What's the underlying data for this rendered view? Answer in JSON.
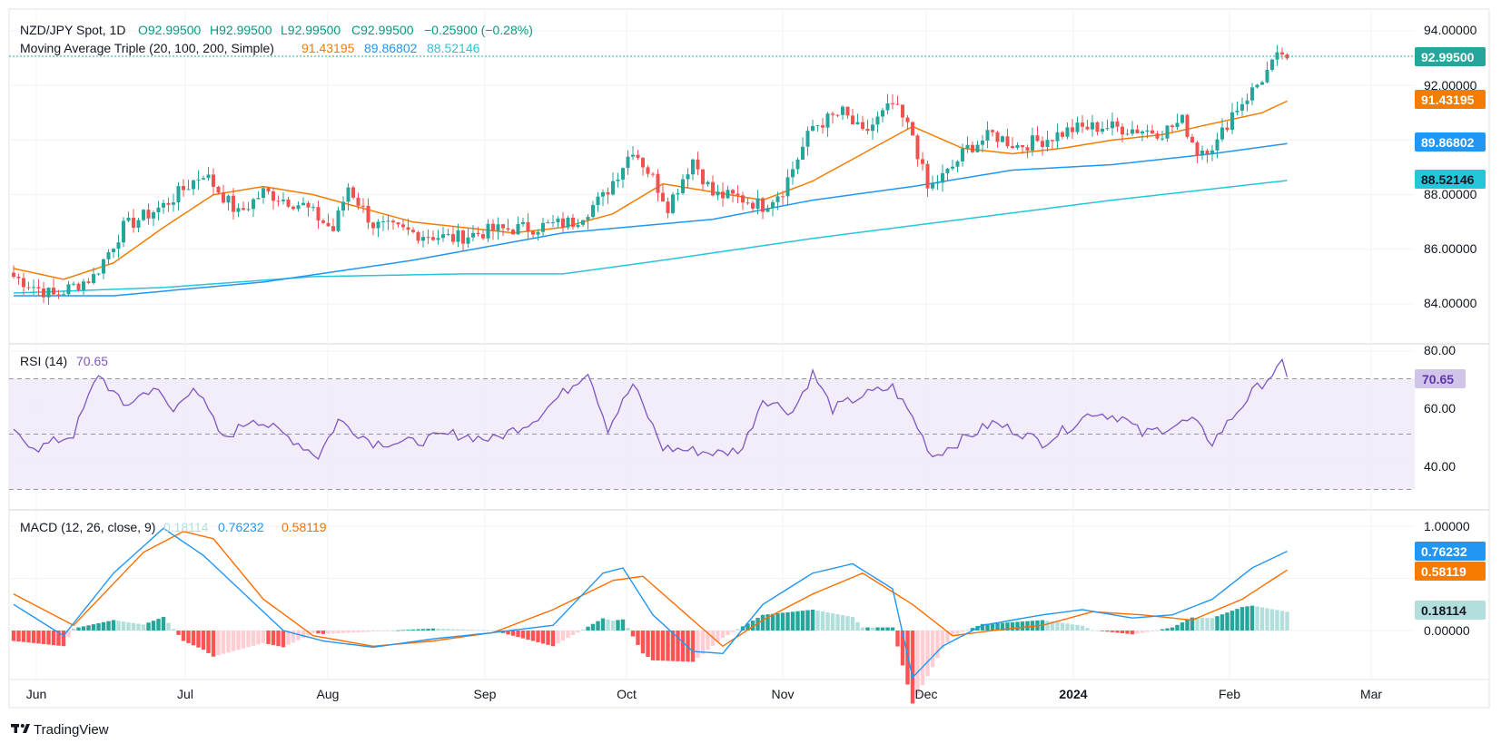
{
  "chart_data": {
    "type": "candlestick",
    "symbol_label": "NZD/JPY Spot, 1D",
    "ohlc_header": {
      "o": "O92.99500",
      "h": "H92.99500",
      "l": "L92.99500",
      "c": "C92.99500",
      "change": "−0.25900 (−0.28%)"
    },
    "ma_legend": {
      "label": "Moving Average Triple (20, 100, 200, Simple)",
      "values": [
        "91.43195",
        "89.86802",
        "88.52146"
      ]
    },
    "rsi_legend": {
      "label": "RSI (14)",
      "value": "70.65"
    },
    "macd_legend": {
      "label": "MACD (12, 26, close, 9)",
      "values": [
        "0.18114",
        "0.76232",
        "0.58119"
      ]
    },
    "last_price_tag": "92.99500",
    "price_axis": {
      "ticks": [
        "94.00000",
        "92.00000",
        "88.00000",
        "86.00000",
        "84.00000"
      ],
      "tags": [
        "92.99500",
        "91.43195",
        "89.86802",
        "88.52146"
      ]
    },
    "rsi_axis": {
      "ticks": [
        "80.00",
        "60.00",
        "40.00"
      ],
      "tag": "70.65"
    },
    "macd_axis": {
      "ticks": [
        "1.00000",
        "0.00000"
      ],
      "tags": [
        "0.76232",
        "0.58119",
        "0.18114"
      ]
    },
    "x_axis": {
      "labels": [
        "Jun",
        "Jul",
        "Aug",
        "Sep",
        "Oct",
        "Nov",
        "Dec",
        "2024",
        "Feb",
        "Mar"
      ]
    },
    "price_key": [
      [
        0,
        85.0
      ],
      [
        8,
        84.3
      ],
      [
        16,
        85.0
      ],
      [
        22,
        86.8
      ],
      [
        30,
        87.6
      ],
      [
        38,
        88.8
      ],
      [
        45,
        87.3
      ],
      [
        50,
        88.1
      ],
      [
        58,
        87.6
      ],
      [
        64,
        86.7
      ],
      [
        67,
        88.3
      ],
      [
        72,
        86.9
      ],
      [
        80,
        86.6
      ],
      [
        88,
        86.4
      ],
      [
        96,
        86.7
      ],
      [
        104,
        86.8
      ],
      [
        112,
        87.0
      ],
      [
        118,
        87.9
      ],
      [
        124,
        89.7
      ],
      [
        128,
        88.6
      ],
      [
        131,
        87.6
      ],
      [
        136,
        89.3
      ],
      [
        140,
        88.0
      ],
      [
        145,
        87.9
      ],
      [
        150,
        87.6
      ],
      [
        154,
        88.2
      ],
      [
        160,
        90.5
      ],
      [
        166,
        91.0
      ],
      [
        170,
        90.2
      ],
      [
        176,
        91.3
      ],
      [
        180,
        90.2
      ],
      [
        183,
        88.2
      ],
      [
        187,
        88.8
      ],
      [
        191,
        89.7
      ],
      [
        196,
        90.2
      ],
      [
        201,
        89.8
      ],
      [
        206,
        90.0
      ],
      [
        212,
        90.4
      ],
      [
        218,
        90.5
      ],
      [
        224,
        90.4
      ],
      [
        230,
        90.3
      ],
      [
        234,
        90.7
      ],
      [
        237,
        89.6
      ],
      [
        241,
        89.9
      ],
      [
        244,
        91.0
      ],
      [
        248,
        91.8
      ],
      [
        251,
        92.5
      ],
      [
        254,
        93.2
      ],
      [
        255,
        92.995
      ]
    ],
    "sma20_key": [
      [
        0,
        85.3
      ],
      [
        10,
        84.9
      ],
      [
        20,
        85.5
      ],
      [
        30,
        86.8
      ],
      [
        40,
        88.0
      ],
      [
        50,
        88.3
      ],
      [
        60,
        88.0
      ],
      [
        70,
        87.5
      ],
      [
        80,
        87.0
      ],
      [
        90,
        86.8
      ],
      [
        100,
        86.6
      ],
      [
        110,
        86.8
      ],
      [
        120,
        87.3
      ],
      [
        130,
        88.4
      ],
      [
        140,
        88.1
      ],
      [
        150,
        87.8
      ],
      [
        160,
        88.5
      ],
      [
        170,
        89.5
      ],
      [
        180,
        90.5
      ],
      [
        190,
        89.7
      ],
      [
        200,
        89.5
      ],
      [
        210,
        89.7
      ],
      [
        220,
        90.0
      ],
      [
        230,
        90.2
      ],
      [
        240,
        90.6
      ],
      [
        250,
        91.0
      ],
      [
        255,
        91.43
      ]
    ],
    "sma100_key": [
      [
        0,
        84.3
      ],
      [
        20,
        84.3
      ],
      [
        50,
        84.8
      ],
      [
        80,
        85.6
      ],
      [
        110,
        86.6
      ],
      [
        140,
        87.1
      ],
      [
        160,
        87.8
      ],
      [
        180,
        88.3
      ],
      [
        200,
        88.9
      ],
      [
        220,
        89.1
      ],
      [
        240,
        89.5
      ],
      [
        255,
        89.87
      ]
    ],
    "sma200_key": [
      [
        0,
        84.4
      ],
      [
        30,
        84.6
      ],
      [
        60,
        85.0
      ],
      [
        90,
        85.1
      ],
      [
        110,
        85.1
      ],
      [
        130,
        85.6
      ],
      [
        160,
        86.4
      ],
      [
        190,
        87.1
      ],
      [
        220,
        87.8
      ],
      [
        255,
        88.52
      ]
    ],
    "rsi_key": [
      [
        0,
        50
      ],
      [
        5,
        45
      ],
      [
        12,
        50
      ],
      [
        17,
        72
      ],
      [
        22,
        60
      ],
      [
        28,
        67
      ],
      [
        32,
        58
      ],
      [
        36,
        68
      ],
      [
        42,
        48
      ],
      [
        48,
        56
      ],
      [
        56,
        48
      ],
      [
        61,
        42
      ],
      [
        65,
        55
      ],
      [
        72,
        47
      ],
      [
        80,
        47
      ],
      [
        88,
        50
      ],
      [
        96,
        48
      ],
      [
        104,
        55
      ],
      [
        112,
        68
      ],
      [
        115,
        73
      ],
      [
        119,
        52
      ],
      [
        124,
        68
      ],
      [
        130,
        45
      ],
      [
        136,
        44
      ],
      [
        142,
        43
      ],
      [
        146,
        45
      ],
      [
        150,
        63
      ],
      [
        156,
        58
      ],
      [
        160,
        72
      ],
      [
        164,
        59
      ],
      [
        170,
        64
      ],
      [
        176,
        67
      ],
      [
        180,
        56
      ],
      [
        184,
        42
      ],
      [
        190,
        48
      ],
      [
        196,
        54
      ],
      [
        201,
        51
      ],
      [
        206,
        47
      ],
      [
        210,
        51
      ],
      [
        216,
        58
      ],
      [
        222,
        56
      ],
      [
        226,
        50
      ],
      [
        232,
        53
      ],
      [
        236,
        55
      ],
      [
        240,
        47
      ],
      [
        244,
        56
      ],
      [
        248,
        65
      ],
      [
        254,
        75
      ],
      [
        255,
        70.65
      ]
    ],
    "macd_key": [
      [
        0,
        0.25
      ],
      [
        10,
        -0.05
      ],
      [
        20,
        0.55
      ],
      [
        30,
        0.98
      ],
      [
        38,
        0.72
      ],
      [
        44,
        0.45
      ],
      [
        54,
        0.0
      ],
      [
        62,
        -0.1
      ],
      [
        72,
        -0.16
      ],
      [
        84,
        -0.08
      ],
      [
        96,
        -0.02
      ],
      [
        108,
        0.05
      ],
      [
        118,
        0.55
      ],
      [
        122,
        0.6
      ],
      [
        128,
        0.15
      ],
      [
        136,
        -0.2
      ],
      [
        142,
        -0.22
      ],
      [
        150,
        0.25
      ],
      [
        160,
        0.55
      ],
      [
        168,
        0.64
      ],
      [
        176,
        0.4
      ],
      [
        180,
        -0.45
      ],
      [
        186,
        -0.15
      ],
      [
        194,
        0.05
      ],
      [
        206,
        0.15
      ],
      [
        214,
        0.2
      ],
      [
        224,
        0.12
      ],
      [
        232,
        0.15
      ],
      [
        240,
        0.3
      ],
      [
        248,
        0.6
      ],
      [
        255,
        0.76
      ]
    ],
    "signal_key": [
      [
        0,
        0.35
      ],
      [
        12,
        0.05
      ],
      [
        26,
        0.75
      ],
      [
        34,
        0.95
      ],
      [
        40,
        0.88
      ],
      [
        50,
        0.3
      ],
      [
        60,
        -0.05
      ],
      [
        72,
        -0.15
      ],
      [
        84,
        -0.1
      ],
      [
        96,
        -0.02
      ],
      [
        108,
        0.2
      ],
      [
        120,
        0.48
      ],
      [
        126,
        0.52
      ],
      [
        136,
        0.1
      ],
      [
        142,
        -0.15
      ],
      [
        150,
        0.1
      ],
      [
        160,
        0.35
      ],
      [
        170,
        0.55
      ],
      [
        180,
        0.25
      ],
      [
        188,
        -0.05
      ],
      [
        196,
        0.0
      ],
      [
        206,
        0.05
      ],
      [
        216,
        0.18
      ],
      [
        226,
        0.15
      ],
      [
        236,
        0.1
      ],
      [
        246,
        0.3
      ],
      [
        255,
        0.58
      ]
    ],
    "colors": {
      "up": "#26a69a",
      "down": "#ef5350",
      "sma20": "#f57c00",
      "sma100": "#2196f3",
      "sma200": "#26c6da",
      "rsi": "#7e57c2",
      "macd": "#2196f3",
      "signal": "#ff6d00",
      "hist_up_strong": "#26a69a",
      "hist_up_weak": "#b2dfdb",
      "hist_down_strong": "#ff5252",
      "hist_down_weak": "#ffcdd2"
    }
  },
  "branding": {
    "name": "TradingView"
  }
}
